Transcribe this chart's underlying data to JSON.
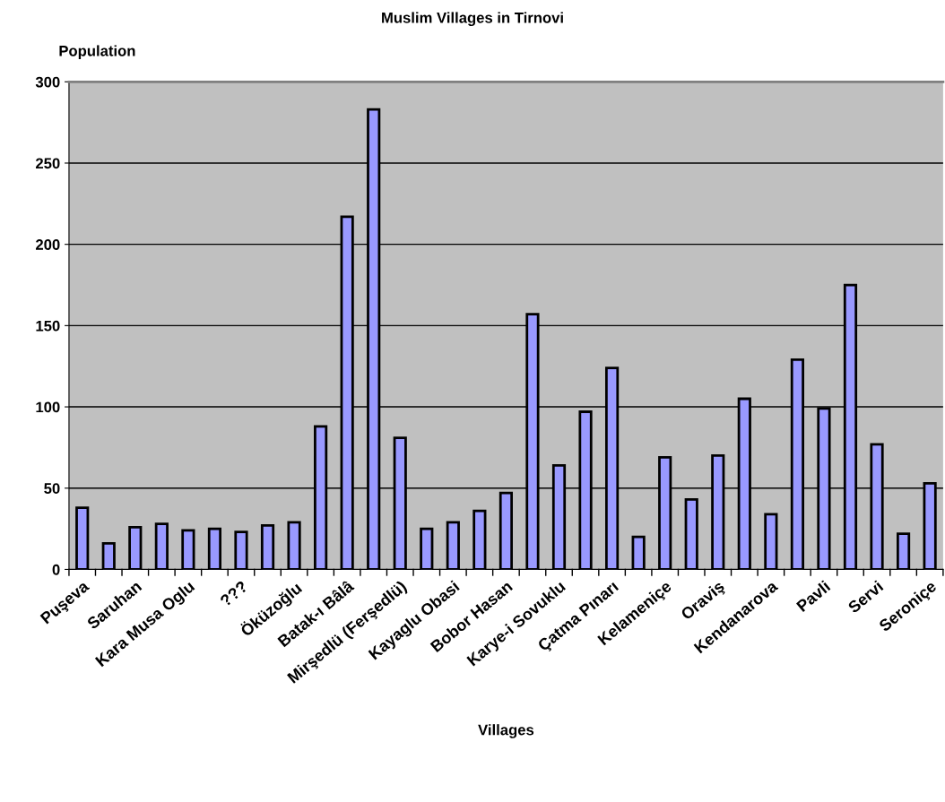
{
  "chart_data": {
    "type": "bar",
    "title": "Muslim Villages in Tirnovi",
    "xlabel": "Villages",
    "ylabel": "Population",
    "categories": [
      "Puşeva",
      null,
      "Saruhan",
      null,
      "Kara Musa Oglu",
      null,
      "???",
      null,
      "Öküzoğlu",
      null,
      "Batak-ı Bâlâ",
      null,
      "Mirşedlü (Ferşedlü)",
      null,
      "Kayaglu Obasi",
      null,
      "Bobor Hasan",
      null,
      "Karye-i Sovuklu",
      null,
      "Çatma Pınarı",
      null,
      "Kelameniçe",
      null,
      "Oraviş",
      null,
      "Kendanarova",
      null,
      "Pavli",
      null,
      "Servi",
      null,
      "Seroniçe"
    ],
    "values": [
      38,
      16,
      26,
      28,
      24,
      25,
      23,
      27,
      29,
      88,
      217,
      283,
      81,
      25,
      29,
      36,
      47,
      157,
      64,
      97,
      124,
      20,
      69,
      43,
      70,
      105,
      34,
      129,
      99,
      175,
      77,
      22,
      53
    ],
    "color": "#9999ff",
    "ylim": [
      0,
      300
    ],
    "yticks": [
      0,
      50,
      100,
      150,
      200,
      250,
      300
    ],
    "grid": "y",
    "legend": false
  }
}
